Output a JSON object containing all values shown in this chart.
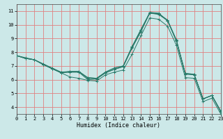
{
  "xlabel": "Humidex (Indice chaleur)",
  "background_color": "#cce8e8",
  "grid_color": "#e08080",
  "line_color": "#2a7a6a",
  "xlim": [
    0,
    23
  ],
  "ylim": [
    3.5,
    11.5
  ],
  "xticks": [
    0,
    1,
    2,
    3,
    4,
    5,
    6,
    7,
    8,
    9,
    10,
    11,
    12,
    13,
    14,
    15,
    16,
    17,
    18,
    19,
    20,
    21,
    22,
    23
  ],
  "yticks": [
    4,
    5,
    6,
    7,
    8,
    9,
    10,
    11
  ],
  "lines": [
    [
      7.75,
      7.55,
      7.45,
      7.15,
      6.85,
      6.55,
      6.55,
      6.55,
      6.0,
      6.05,
      6.5,
      6.75,
      6.95,
      8.35,
      9.55,
      10.9,
      10.85,
      10.3,
      8.8,
      6.4,
      6.35,
      4.6,
      4.85,
      3.7
    ],
    [
      7.75,
      7.55,
      7.45,
      7.1,
      6.8,
      6.5,
      6.6,
      6.6,
      6.15,
      6.1,
      6.55,
      6.85,
      7.0,
      8.4,
      9.65,
      10.9,
      10.8,
      10.35,
      8.9,
      6.45,
      6.4,
      4.6,
      4.85,
      3.7
    ],
    [
      7.75,
      7.55,
      7.45,
      7.1,
      6.8,
      6.55,
      6.6,
      6.6,
      6.15,
      6.1,
      6.55,
      6.85,
      7.0,
      8.4,
      9.65,
      10.85,
      10.75,
      10.3,
      8.85,
      6.45,
      6.4,
      4.6,
      4.85,
      3.7
    ],
    [
      7.75,
      7.6,
      7.45,
      7.1,
      6.8,
      6.5,
      6.55,
      6.55,
      6.1,
      6.05,
      6.5,
      6.75,
      6.95,
      8.3,
      9.5,
      10.85,
      10.8,
      10.3,
      8.85,
      6.45,
      6.35,
      4.6,
      4.85,
      3.65
    ],
    [
      7.75,
      7.55,
      7.45,
      7.1,
      6.8,
      6.5,
      6.2,
      6.1,
      5.95,
      5.9,
      6.35,
      6.55,
      6.7,
      7.85,
      9.2,
      10.5,
      10.4,
      9.9,
      8.5,
      6.15,
      6.1,
      4.4,
      4.65,
      3.5
    ]
  ]
}
